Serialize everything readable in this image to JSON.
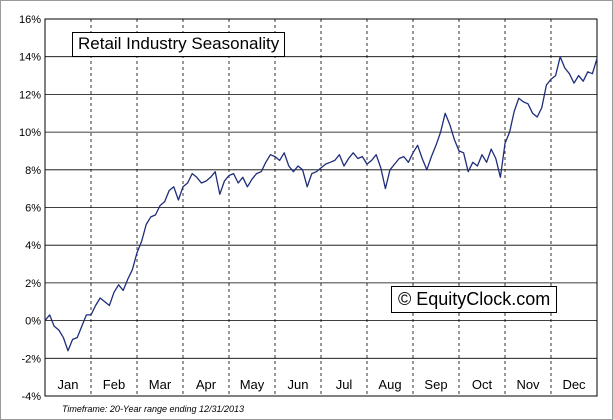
{
  "chart_data": {
    "type": "line",
    "title": "Retail Industry Seasonality",
    "xlabel": "",
    "ylabel": "",
    "ylim": [
      -4,
      16
    ],
    "yticks": [
      "16%",
      "14%",
      "12%",
      "10%",
      "8%",
      "6%",
      "4%",
      "2%",
      "0%",
      "-2%",
      "-4%"
    ],
    "categories": [
      "Jan",
      "Feb",
      "Mar",
      "Apr",
      "May",
      "Jun",
      "Jul",
      "Aug",
      "Sep",
      "Oct",
      "Nov",
      "Dec"
    ],
    "grid": true,
    "series": [
      {
        "x": [
          0.0,
          0.1,
          0.2,
          0.3,
          0.4,
          0.5,
          0.6,
          0.7,
          0.8,
          0.9,
          1.0,
          1.1,
          1.2,
          1.3,
          1.4,
          1.5,
          1.6,
          1.7,
          1.8,
          1.9,
          2.0,
          2.1,
          2.2,
          2.3,
          2.4,
          2.5,
          2.6,
          2.7,
          2.8,
          2.9,
          3.0,
          3.1,
          3.2,
          3.3,
          3.4,
          3.5,
          3.6,
          3.7,
          3.8,
          3.9,
          4.0,
          4.1,
          4.2,
          4.3,
          4.4,
          4.5,
          4.6,
          4.7,
          4.8,
          4.9,
          5.0,
          5.1,
          5.2,
          5.3,
          5.4,
          5.5,
          5.6,
          5.7,
          5.8,
          5.9,
          6.0,
          6.1,
          6.2,
          6.3,
          6.4,
          6.5,
          6.6,
          6.7,
          6.8,
          6.9,
          7.0,
          7.1,
          7.2,
          7.3,
          7.4,
          7.5,
          7.6,
          7.7,
          7.8,
          7.9,
          8.0,
          8.1,
          8.2,
          8.3,
          8.4,
          8.5,
          8.6,
          8.7,
          8.8,
          8.9,
          9.0,
          9.1,
          9.2,
          9.3,
          9.4,
          9.5,
          9.6,
          9.7,
          9.8,
          9.9,
          10.0,
          10.1,
          10.2,
          10.3,
          10.4,
          10.5,
          10.6,
          10.7,
          10.8,
          10.9,
          11.0,
          11.1,
          11.2,
          11.3,
          11.4,
          11.5,
          11.6,
          11.7,
          11.8,
          11.9,
          12.0
        ],
        "values": [
          0.0,
          0.3,
          -0.3,
          -0.5,
          -0.9,
          -1.6,
          -1.0,
          -0.9,
          -0.3,
          0.3,
          0.3,
          0.8,
          1.2,
          1.0,
          0.8,
          1.5,
          1.9,
          1.6,
          2.2,
          2.7,
          3.6,
          4.2,
          5.1,
          5.5,
          5.6,
          6.1,
          6.3,
          6.9,
          7.1,
          6.4,
          7.1,
          7.3,
          7.8,
          7.6,
          7.3,
          7.4,
          7.6,
          7.9,
          6.7,
          7.4,
          7.7,
          7.8,
          7.3,
          7.6,
          7.1,
          7.5,
          7.8,
          7.9,
          8.4,
          8.8,
          8.7,
          8.5,
          8.9,
          8.2,
          7.9,
          8.2,
          8.0,
          7.1,
          7.8,
          7.9,
          8.1,
          8.3,
          8.4,
          8.5,
          8.8,
          8.2,
          8.6,
          8.9,
          8.6,
          8.7,
          8.3,
          8.5,
          8.8,
          8.1,
          7.0,
          8.0,
          8.3,
          8.6,
          8.7,
          8.4,
          8.9,
          9.3,
          8.6,
          8.0,
          8.7,
          9.3,
          10.0,
          11.0,
          10.4,
          9.6,
          9.0,
          8.9,
          7.9,
          8.4,
          8.2,
          8.8,
          8.4,
          9.1,
          8.6,
          7.6,
          9.4,
          10.0,
          11.1,
          11.8,
          11.6,
          11.5,
          11.0,
          10.8,
          11.3,
          12.5,
          12.8,
          13.0,
          14.0,
          13.4,
          13.1,
          12.6,
          13.0,
          12.7,
          13.2,
          13.1,
          13.9
        ]
      }
    ]
  },
  "watermark": "© EquityClock.com",
  "footnote": "Timeframe: 20-Year range ending 12/31/2013",
  "colors": {
    "line": "#1f2d7a",
    "grid": "#000000",
    "frame": "#9a9a9a"
  }
}
